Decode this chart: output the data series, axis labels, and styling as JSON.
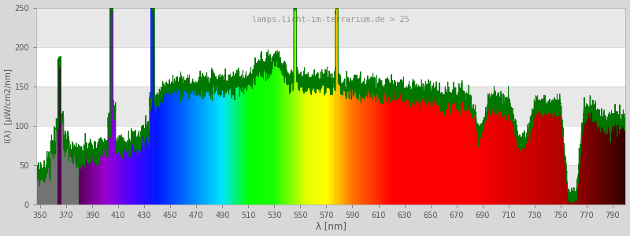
{
  "title": "lamps.licht-im-terrarium.de > 25",
  "xlabel": "λ [nm]",
  "ylabel": "I(λ)  [μW/cm2/nm]",
  "xlim": [
    347,
    800
  ],
  "ylim": [
    0,
    250
  ],
  "yticks": [
    0,
    50,
    100,
    150,
    200,
    250
  ],
  "xticks": [
    350,
    370,
    390,
    410,
    430,
    450,
    470,
    490,
    510,
    530,
    550,
    570,
    590,
    610,
    630,
    650,
    670,
    690,
    710,
    730,
    750,
    770,
    790
  ],
  "bg_color": "#d8d8d8",
  "plot_bg_color": "#ffffff",
  "band_color": "#e8e8e8",
  "line_color": "#007700",
  "title_color": "#999999",
  "axis_label_color": "#555555",
  "tick_label_color": "#555555",
  "wavelength_start": 348,
  "wavelength_end": 800,
  "figsize": [
    8.0,
    3.0
  ],
  "dpi": 100
}
